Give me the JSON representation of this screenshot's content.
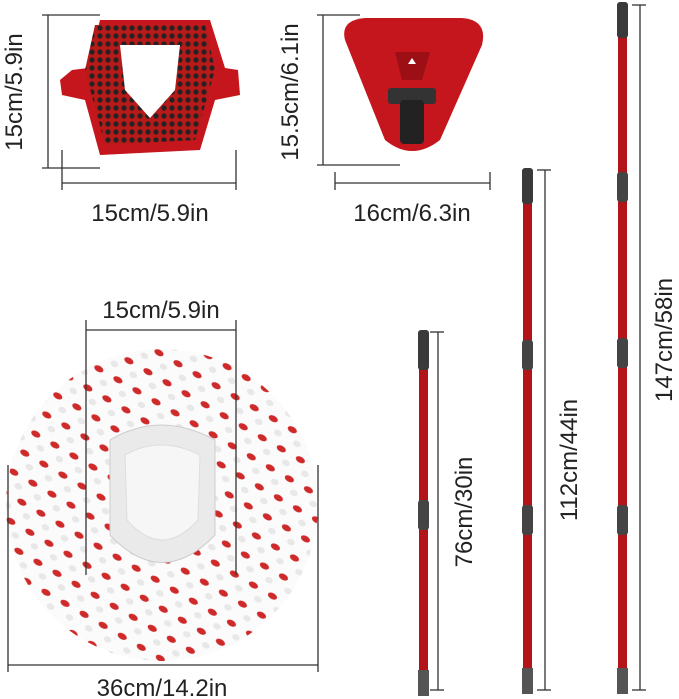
{
  "colors": {
    "red": "#c4161c",
    "dark_red": "#8e0f13",
    "black": "#2a2a2a",
    "grey": "#666666",
    "white": "#ffffff"
  },
  "brush_head": {
    "height_label": "15cm/5.9in",
    "width_label": "15cm/5.9in"
  },
  "triangle_base": {
    "height_label": "15.5cm/6.1in",
    "width_label": "16cm/6.3in"
  },
  "mop_head": {
    "inner_width_label": "15cm/5.9in",
    "outer_width_label": "36cm/14.2in"
  },
  "poles": [
    {
      "length_label": "76cm/30in"
    },
    {
      "length_label": "112cm/44in"
    },
    {
      "length_label": "147cm/58in"
    }
  ]
}
